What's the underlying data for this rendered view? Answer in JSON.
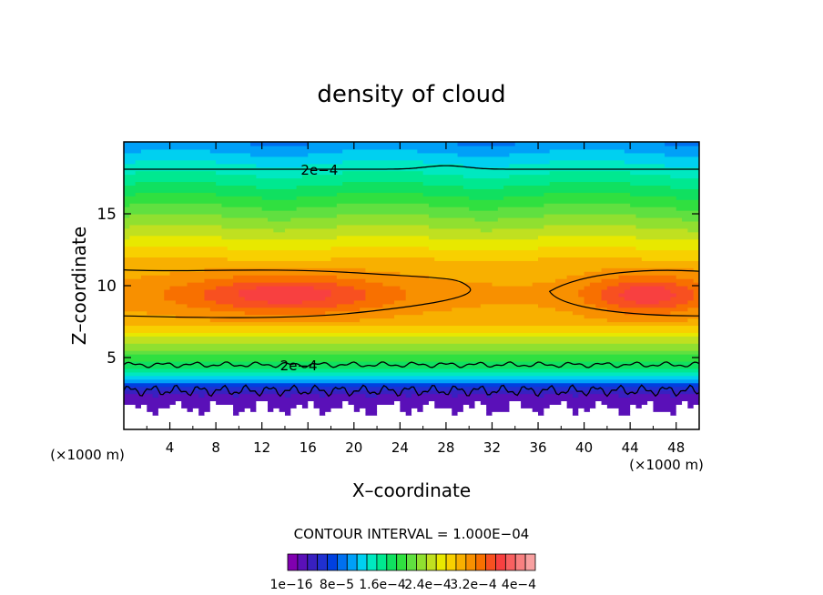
{
  "chart_data": {
    "type": "heatmap",
    "title": "density of cloud",
    "xlabel": "X–coordinate",
    "ylabel": "Z–coordinate",
    "x_unit_left": "(×1000 m)",
    "x_unit_right": "(×1000 m)",
    "xlim": [
      0,
      50
    ],
    "ylim": [
      0,
      20
    ],
    "x_ticks": [
      4,
      8,
      12,
      16,
      20,
      24,
      28,
      32,
      36,
      40,
      44,
      48
    ],
    "y_ticks": [
      5,
      10,
      15
    ],
    "contour_interval_label": "CONTOUR INTERVAL = 1.000E−04",
    "contour_labels": [
      {
        "text": "2e−4",
        "x": 17.0,
        "z": 18.1
      },
      {
        "text": "2e−4",
        "x": 15.2,
        "z": 4.5
      }
    ],
    "colorbar": {
      "colors": [
        "#8000b0",
        "#5a10b8",
        "#3820c0",
        "#2030d0",
        "#0040e0",
        "#0070f0",
        "#00a0f8",
        "#00d0f0",
        "#00e8c0",
        "#00e890",
        "#10e060",
        "#30e040",
        "#60e040",
        "#90e030",
        "#c0e020",
        "#e8e800",
        "#f8d000",
        "#f8b000",
        "#f89000",
        "#f87000",
        "#f85020",
        "#f84040",
        "#f86060",
        "#f88080",
        "#f8a0a0"
      ],
      "tick_labels": [
        "1e−16",
        "8e−5",
        "1.6e−4",
        "2.4e−4",
        "3.2e−4",
        "4e−4"
      ]
    }
  }
}
